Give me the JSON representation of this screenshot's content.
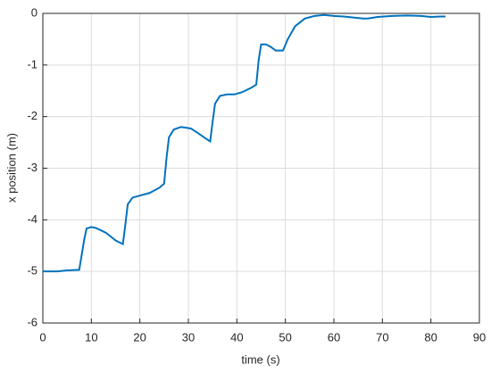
{
  "chart_data": {
    "type": "line",
    "xlabel": "time (s)",
    "ylabel": "x position (m)",
    "x": [
      0,
      3,
      5,
      7.5,
      8.5,
      9,
      10,
      11,
      13,
      15,
      16.5,
      17,
      17.5,
      18.5,
      20,
      22,
      24,
      25,
      25.5,
      26,
      27,
      28.5,
      30.5,
      32,
      33.5,
      34.5,
      35,
      35.5,
      36.5,
      38,
      39.5,
      41,
      43,
      44,
      44.5,
      45,
      46,
      47,
      48,
      49.5,
      50.5,
      52,
      54,
      56,
      58,
      60,
      62,
      64,
      66,
      67,
      69,
      72,
      75,
      78,
      80,
      82,
      83
    ],
    "series": [
      {
        "color": "#0072bd",
        "values": [
          -5.0,
          -5.0,
          -4.98,
          -4.97,
          -4.4,
          -4.17,
          -4.14,
          -4.16,
          -4.25,
          -4.4,
          -4.47,
          -4.1,
          -3.7,
          -3.57,
          -3.53,
          -3.48,
          -3.38,
          -3.3,
          -2.8,
          -2.4,
          -2.25,
          -2.2,
          -2.23,
          -2.32,
          -2.42,
          -2.48,
          -2.1,
          -1.75,
          -1.6,
          -1.57,
          -1.57,
          -1.53,
          -1.44,
          -1.38,
          -0.9,
          -0.6,
          -0.6,
          -0.65,
          -0.72,
          -0.72,
          -0.5,
          -0.25,
          -0.1,
          -0.05,
          -0.03,
          -0.05,
          -0.06,
          -0.08,
          -0.1,
          -0.1,
          -0.07,
          -0.05,
          -0.04,
          -0.05,
          -0.07,
          -0.06,
          -0.06
        ]
      }
    ],
    "xlim": [
      0,
      90
    ],
    "xticks": [
      0,
      10,
      20,
      30,
      40,
      50,
      60,
      70,
      80,
      90
    ],
    "ylim": [
      -6,
      0
    ],
    "yticks": [
      -6,
      -5,
      -4,
      -3,
      -2,
      -1,
      0
    ],
    "grid": true
  }
}
